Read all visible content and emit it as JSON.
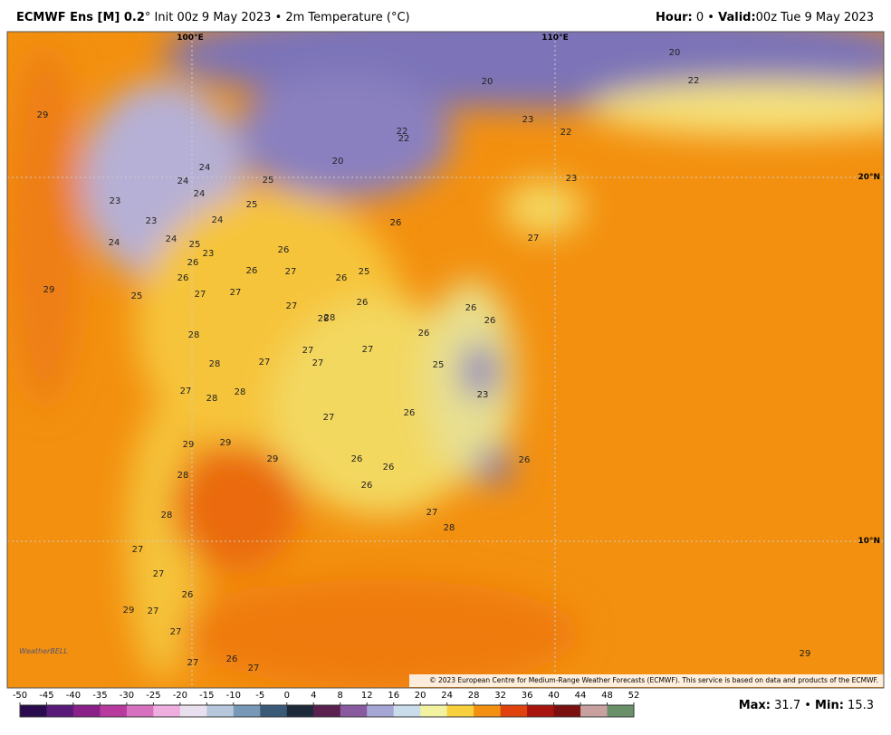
{
  "header": {
    "title_bold": "ECMWF Ens [M] 0.2",
    "title_rest": "° Init 00z 9 May 2023 • 2m Temperature (°C)",
    "hour_label": "Hour:",
    "hour": 0,
    "separator": "•",
    "valid_label": "Valid:",
    "valid": "00z Tue 9 May 2023"
  },
  "map": {
    "lon_labels": [
      "100°E",
      "110°E"
    ],
    "lat_labels": [
      "20°N",
      "10°N"
    ],
    "temperature_labels": [
      20,
      20,
      22,
      29,
      23,
      22,
      22,
      22,
      20,
      24,
      24,
      25,
      24,
      23,
      23,
      25,
      23,
      24,
      26,
      24,
      24,
      25,
      23,
      26,
      26,
      27,
      26,
      27,
      25,
      26,
      29,
      26,
      27,
      25,
      27,
      26,
      27,
      26,
      26,
      28,
      28,
      28,
      26,
      27,
      27,
      28,
      27,
      27,
      25,
      27,
      28,
      28,
      23,
      26,
      27,
      29,
      29,
      26,
      26,
      29,
      26,
      28,
      26,
      28,
      27,
      28,
      27,
      27,
      26,
      29,
      27,
      27,
      29,
      26,
      27,
      27
    ],
    "copyright": "© 2023 European Centre for Medium-Range Weather Forecasts (ECMWF). This service is based on data and products of the ECMWF.",
    "logo": "WeatherBELL"
  },
  "colorbar": {
    "ticks": [
      -50,
      -45,
      -40,
      -35,
      -30,
      -25,
      -20,
      -15,
      -10,
      -5,
      0,
      4,
      8,
      12,
      16,
      20,
      24,
      28,
      32,
      36,
      40,
      44,
      48,
      52
    ]
  },
  "footer": {
    "max_label": "Max:",
    "max": 31.7,
    "separator": "•",
    "min_label": "Min:",
    "min": 15.3
  }
}
